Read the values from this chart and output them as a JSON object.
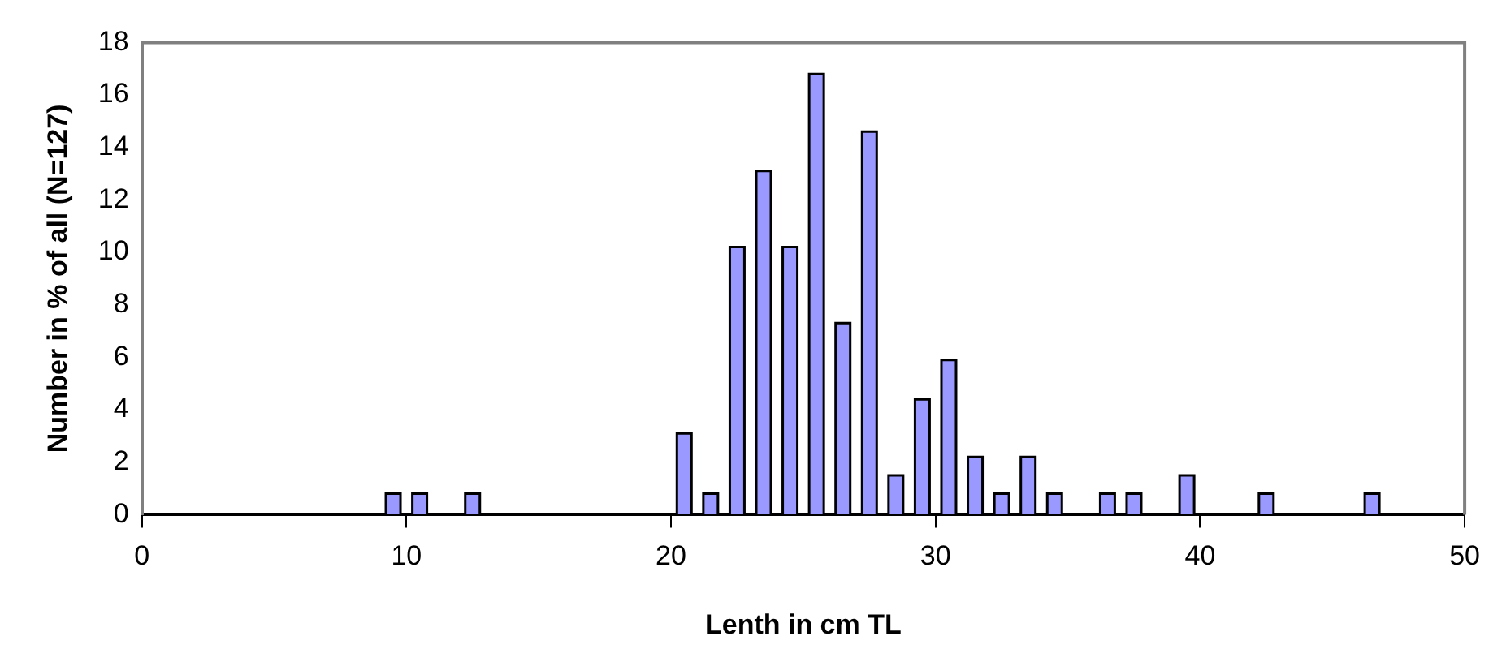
{
  "chart_data": {
    "type": "bar",
    "xlabel": "Lenth in cm TL",
    "ylabel": "Number in % of all (N=127)",
    "x": [
      9.5,
      10.5,
      12.5,
      20.5,
      21.5,
      22.5,
      23.5,
      24.5,
      25.5,
      26.5,
      27.5,
      28.5,
      29.5,
      30.5,
      31.5,
      32.5,
      33.5,
      34.5,
      36.5,
      37.5,
      39.5,
      42.5,
      46.5
    ],
    "values": [
      0.8,
      0.8,
      0.8,
      3.1,
      0.8,
      10.2,
      13.1,
      10.2,
      16.8,
      7.3,
      14.6,
      1.5,
      4.4,
      5.9,
      2.2,
      0.8,
      2.2,
      0.8,
      0.8,
      0.8,
      1.5,
      0.8,
      0.8
    ],
    "color": "#9999ff",
    "xlim": [
      0,
      50
    ],
    "xticks": [
      0,
      10,
      20,
      30,
      40,
      50
    ],
    "ylim": [
      0,
      18
    ],
    "yticks": [
      0,
      2,
      4,
      6,
      8,
      10,
      12,
      14,
      16,
      18
    ],
    "grid": false,
    "legend": false
  }
}
